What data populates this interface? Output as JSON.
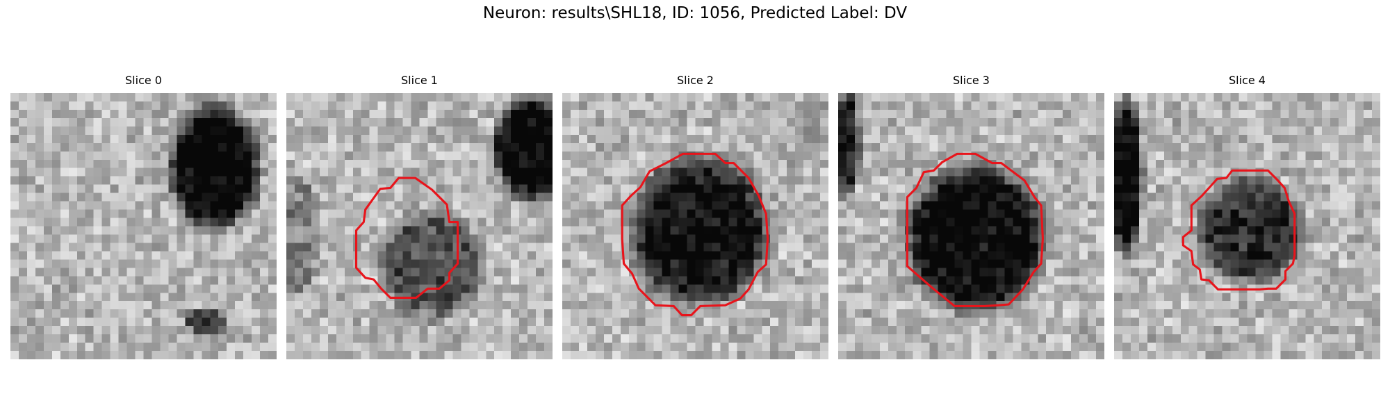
{
  "figure": {
    "title": "Neuron: results\\SHL18, ID: 1056, Predicted Label: DV"
  },
  "panels": [
    {
      "title": "Slice 0",
      "image": "grayscale-microscopy-slice",
      "has_contour": false
    },
    {
      "title": "Slice 1",
      "image": "grayscale-microscopy-slice",
      "has_contour": true,
      "contour_color": "#e8141b"
    },
    {
      "title": "Slice 2",
      "image": "grayscale-microscopy-slice",
      "has_contour": true,
      "contour_color": "#e8141b"
    },
    {
      "title": "Slice 3",
      "image": "grayscale-microscopy-slice",
      "has_contour": true,
      "contour_color": "#e8141b"
    },
    {
      "title": "Slice 4",
      "image": "grayscale-microscopy-slice",
      "has_contour": true,
      "contour_color": "#e8141b"
    }
  ]
}
